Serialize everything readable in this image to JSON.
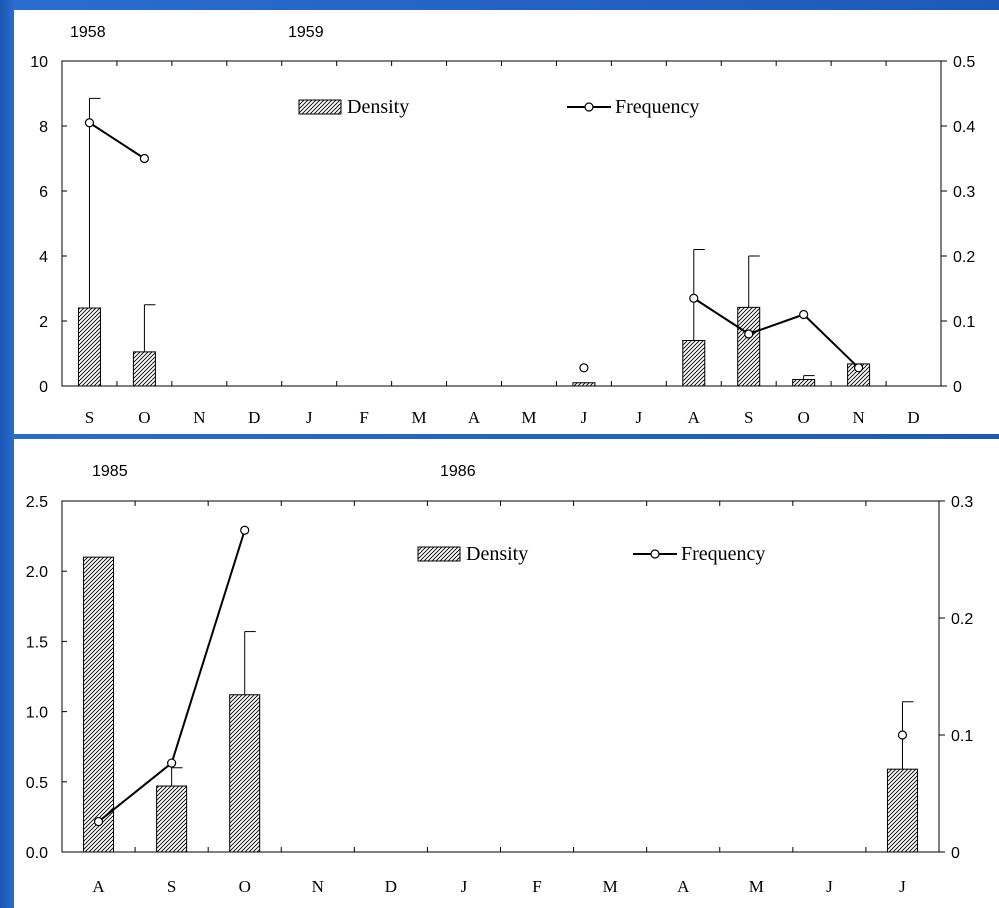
{
  "chart_data": [
    {
      "type": "bar",
      "years": [
        "1958",
        "1959"
      ],
      "categories": [
        "S",
        "O",
        "N",
        "D",
        "J",
        "F",
        "M",
        "A",
        "M",
        "J",
        "J",
        "A",
        "S",
        "O",
        "N",
        "D"
      ],
      "left_axis": {
        "ylim": [
          0,
          10
        ],
        "ticks": [
          "0",
          "2",
          "4",
          "6",
          "8",
          "10"
        ]
      },
      "right_axis": {
        "ylim": [
          0,
          0.5
        ],
        "ticks": [
          "0",
          "0.1",
          "0.2",
          "0.3",
          "0.4",
          "0.5"
        ]
      },
      "series": [
        {
          "name": "Density",
          "kind": "bar",
          "axis": "left",
          "values": [
            2.4,
            1.05,
            null,
            null,
            null,
            null,
            null,
            null,
            null,
            0.1,
            null,
            1.4,
            2.42,
            0.2,
            0.68,
            null
          ],
          "error": [
            8.85,
            2.5,
            null,
            null,
            null,
            null,
            null,
            null,
            null,
            null,
            null,
            4.2,
            4.0,
            0.32,
            null,
            null
          ]
        },
        {
          "name": "Frequency",
          "kind": "line",
          "axis": "right",
          "values": [
            0.405,
            0.35,
            null,
            null,
            null,
            null,
            null,
            null,
            null,
            0.028,
            null,
            0.135,
            0.08,
            0.11,
            0.028,
            null
          ]
        }
      ]
    },
    {
      "type": "bar",
      "years": [
        "1985",
        "1986"
      ],
      "categories": [
        "A",
        "S",
        "O",
        "N",
        "D",
        "J",
        "F",
        "M",
        "A",
        "M",
        "J",
        "J"
      ],
      "left_axis": {
        "ylim": [
          0,
          2.5
        ],
        "ticks": [
          "0.0",
          "0.5",
          "1.0",
          "1.5",
          "2.0",
          "2.5"
        ]
      },
      "right_axis": {
        "ylim": [
          0,
          0.3
        ],
        "ticks": [
          "0",
          "0.1",
          "0.2",
          "0.3"
        ]
      },
      "series": [
        {
          "name": "Density",
          "kind": "bar",
          "axis": "left",
          "values": [
            2.1,
            0.47,
            1.12,
            null,
            null,
            null,
            null,
            null,
            null,
            null,
            null,
            0.59
          ],
          "error": [
            null,
            0.6,
            1.57,
            null,
            null,
            null,
            null,
            null,
            null,
            null,
            null,
            1.07
          ]
        },
        {
          "name": "Frequency",
          "kind": "line",
          "axis": "right",
          "values": [
            0.026,
            0.076,
            0.275,
            null,
            null,
            null,
            null,
            null,
            null,
            null,
            null,
            0.1
          ]
        }
      ]
    }
  ],
  "colors": {
    "background": "#1d5ab8",
    "panel": "#ffffff",
    "ink": "#000000"
  }
}
